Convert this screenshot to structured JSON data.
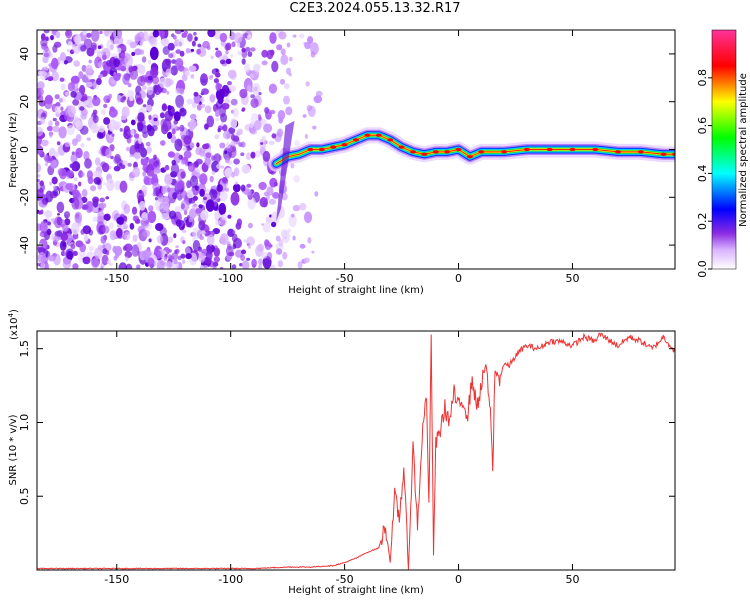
{
  "title": "C2E3.2024.055.13.32.R17",
  "chart_data": [
    {
      "type": "heatmap",
      "xlabel": "Height of straight line (km)",
      "ylabel": "Frequency (Hz)",
      "xlim": [
        -185,
        95
      ],
      "ylim": [
        -50,
        50
      ],
      "xticks": [
        -150,
        -100,
        -50,
        0,
        50
      ],
      "yticks": [
        -40,
        -20,
        0,
        20,
        40
      ],
      "colorbar": {
        "label": "Normalized spectral amplitude",
        "range": [
          0.0,
          1.0
        ],
        "ticks": [
          0.0,
          0.2,
          0.4,
          0.6,
          0.8
        ],
        "colormap": [
          "#ffffff",
          "#d9b3ff",
          "#8a2be2",
          "#0000ff",
          "#00ffff",
          "#00ff00",
          "#ffff00",
          "#ff0000",
          "#ff3399"
        ]
      },
      "ridge_frequency_trace": {
        "x": [
          -80,
          -75,
          -70,
          -65,
          -60,
          -55,
          -50,
          -45,
          -40,
          -35,
          -30,
          -25,
          -20,
          -15,
          -10,
          -5,
          0,
          5,
          10,
          20,
          30,
          40,
          50,
          60,
          70,
          80,
          90,
          95
        ],
        "y": [
          -6,
          -3,
          -2,
          0,
          0,
          1,
          2,
          4,
          6,
          6,
          4,
          1,
          -1,
          -2,
          -1,
          -1,
          0,
          -3,
          -1,
          -1,
          0,
          0,
          0,
          0,
          -1,
          -1,
          -2,
          -2
        ]
      },
      "noise_region_x": [
        -185,
        -65
      ]
    },
    {
      "type": "line",
      "xlabel": "Height of straight line (km)",
      "ylabel": "SNR (10 * v/v)",
      "y_multiplier": "(x10",
      "y_multiplier_exp": "4",
      "y_multiplier_close": ")",
      "xlim": [
        -185,
        95
      ],
      "ylim": [
        0,
        1.62
      ],
      "xticks": [
        -150,
        -100,
        -50,
        0,
        50
      ],
      "yticks": [
        0.5,
        1.0,
        1.5
      ],
      "ytick_labels": [
        "0.5",
        "1.0",
        "1.5"
      ],
      "color": "#ee3333",
      "series": [
        {
          "x": [
            -185,
            -170,
            -150,
            -130,
            -110,
            -90,
            -75,
            -65,
            -55,
            -50,
            -45,
            -40,
            -35,
            -32,
            -30,
            -28,
            -26,
            -24,
            -22,
            -20,
            -18,
            -16,
            -14,
            -13,
            -12,
            -11,
            -10,
            -8,
            -6,
            -4,
            -2,
            0,
            2,
            4,
            6,
            8,
            10,
            12,
            14,
            15,
            16,
            18,
            20,
            22,
            25,
            28,
            30,
            35,
            40,
            45,
            50,
            55,
            60,
            62,
            65,
            70,
            75,
            80,
            85,
            90,
            95
          ],
          "y": [
            0.01,
            0.01,
            0.01,
            0.01,
            0.01,
            0.01,
            0.02,
            0.02,
            0.03,
            0.05,
            0.08,
            0.12,
            0.15,
            0.3,
            0.05,
            0.5,
            0.35,
            0.7,
            0.0,
            0.85,
            0.3,
            0.9,
            1.2,
            0.4,
            1.58,
            0.1,
            0.85,
            0.95,
            1.1,
            1.0,
            1.2,
            1.1,
            1.15,
            1.05,
            1.3,
            1.1,
            1.25,
            1.4,
            1.05,
            0.67,
            1.35,
            1.3,
            1.4,
            1.38,
            1.45,
            1.5,
            1.52,
            1.5,
            1.55,
            1.55,
            1.52,
            1.58,
            1.55,
            1.6,
            1.57,
            1.52,
            1.58,
            1.55,
            1.5,
            1.58,
            1.48
          ]
        }
      ]
    }
  ]
}
